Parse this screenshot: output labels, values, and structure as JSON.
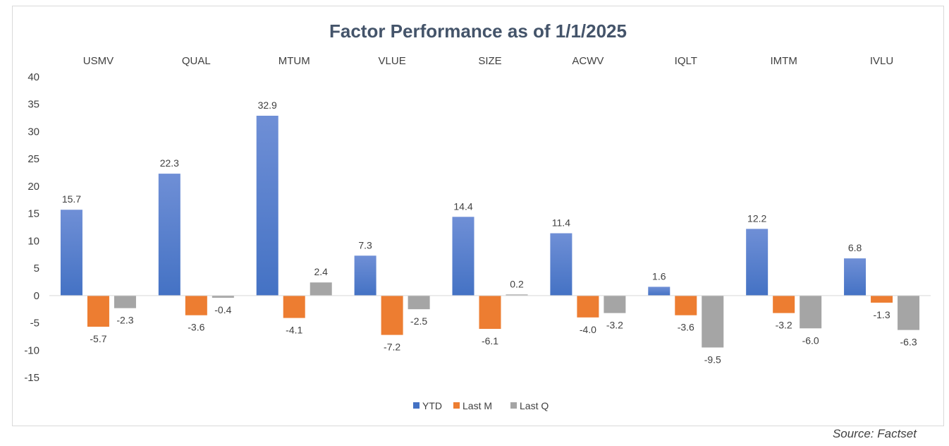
{
  "chart_data": {
    "type": "bar",
    "title": "Factor Performance as of 1/1/2025",
    "categories": [
      "USMV",
      "QUAL",
      "MTUM",
      "VLUE",
      "SIZE",
      "ACWV",
      "IQLT",
      "IMTM",
      "IVLU"
    ],
    "series": [
      {
        "name": "YTD",
        "color": "#4472c4",
        "values": [
          15.7,
          22.3,
          32.9,
          7.3,
          14.4,
          11.4,
          1.6,
          12.2,
          6.8
        ]
      },
      {
        "name": "Last M",
        "color": "#ed7d31",
        "values": [
          -5.7,
          -3.6,
          -4.1,
          -7.2,
          -6.1,
          -4.0,
          -3.6,
          -3.2,
          -1.3
        ]
      },
      {
        "name": "Last Q",
        "color": "#a5a5a5",
        "values": [
          -2.3,
          -0.4,
          2.4,
          -2.5,
          0.2,
          -3.2,
          -9.5,
          -6.0,
          -6.3
        ]
      }
    ],
    "ylim": [
      -15,
      40
    ],
    "yticks": [
      40,
      35,
      30,
      25,
      20,
      15,
      10,
      5,
      0,
      -5,
      -10,
      -15
    ],
    "grid": false,
    "legend": "bottom-center",
    "category_labels_position": "top"
  },
  "source_note": "Source: Factset"
}
